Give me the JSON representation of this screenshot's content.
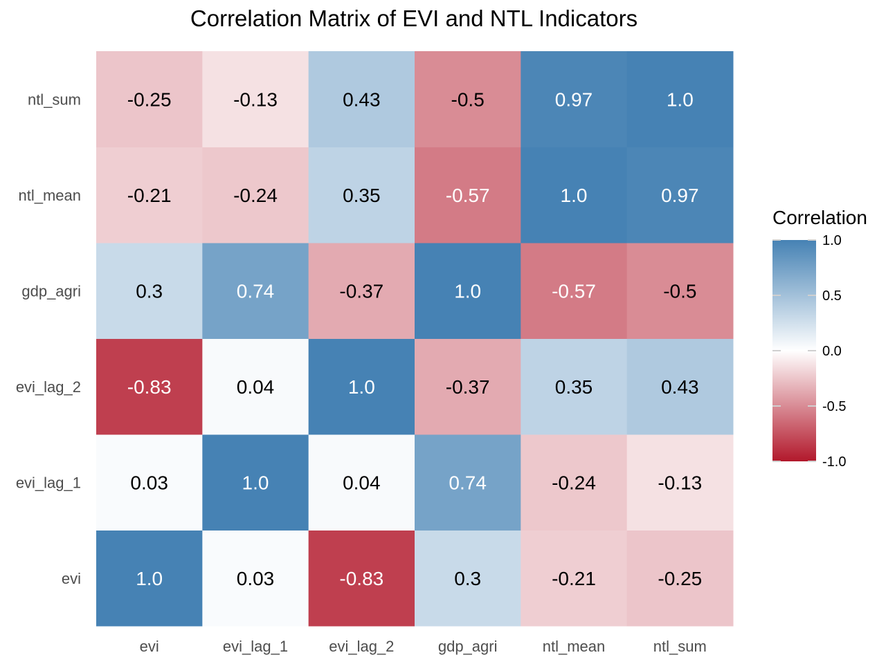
{
  "chart_data": {
    "type": "heatmap",
    "title": "Correlation Matrix of EVI and NTL Indicators",
    "x_categories": [
      "evi",
      "evi_lag_1",
      "evi_lag_2",
      "gdp_agri",
      "ntl_mean",
      "ntl_sum"
    ],
    "y_categories": [
      "evi",
      "evi_lag_1",
      "evi_lag_2",
      "gdp_agri",
      "ntl_mean",
      "ntl_sum"
    ],
    "values": [
      [
        1.0,
        0.03,
        -0.83,
        0.3,
        -0.21,
        -0.25
      ],
      [
        0.03,
        1.0,
        0.04,
        0.74,
        -0.24,
        -0.13
      ],
      [
        -0.83,
        0.04,
        1.0,
        -0.37,
        0.35,
        0.43
      ],
      [
        0.3,
        0.74,
        -0.37,
        1.0,
        -0.57,
        -0.5
      ],
      [
        -0.21,
        -0.24,
        0.35,
        -0.57,
        1.0,
        0.97
      ],
      [
        -0.25,
        -0.13,
        0.43,
        -0.5,
        0.97,
        1.0
      ]
    ],
    "value_labels": [
      [
        "1.0",
        "0.03",
        "-0.83",
        "0.3",
        "-0.21",
        "-0.25"
      ],
      [
        "0.03",
        "1.0",
        "0.04",
        "0.74",
        "-0.24",
        "-0.13"
      ],
      [
        "-0.83",
        "0.04",
        "1.0",
        "-0.37",
        "0.35",
        "0.43"
      ],
      [
        "0.3",
        "0.74",
        "-0.37",
        "1.0",
        "-0.57",
        "-0.5"
      ],
      [
        "-0.21",
        "-0.24",
        "0.35",
        "-0.57",
        "1.0",
        "0.97"
      ],
      [
        "-0.25",
        "-0.13",
        "0.43",
        "-0.5",
        "0.97",
        "1.0"
      ]
    ],
    "color_scale": {
      "low": "#b2182b",
      "mid": "#ffffff",
      "high": "#4682b4",
      "limits": [
        -1.0,
        1.0
      ]
    },
    "legend": {
      "title": "Correlation",
      "position": "right",
      "ticks": [
        1.0,
        0.5,
        0.0,
        -0.5,
        -1.0
      ],
      "tick_labels": [
        "1.0",
        "0.5",
        "0.0",
        "-0.5",
        "-1.0"
      ]
    },
    "grid": false
  }
}
